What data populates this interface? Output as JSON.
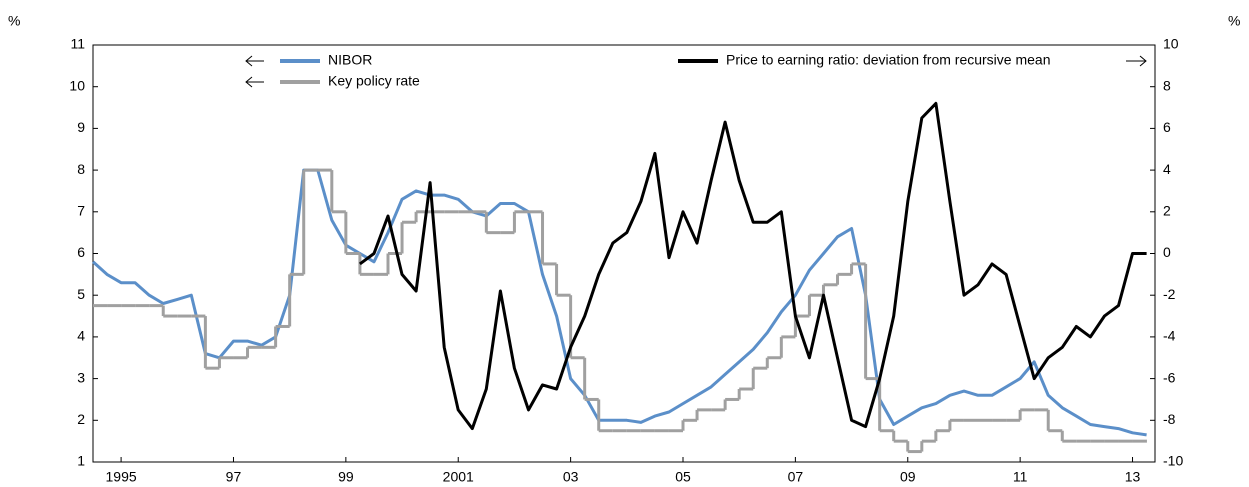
{
  "chart_data": {
    "type": "line",
    "y_unit": "%",
    "y2_unit": "%",
    "x": [
      1995.0,
      1995.25,
      1995.5,
      1995.75,
      1996.0,
      1996.25,
      1996.5,
      1996.75,
      1997.0,
      1997.25,
      1997.5,
      1997.75,
      1998.0,
      1998.25,
      1998.5,
      1998.75,
      1999.0,
      1999.25,
      1999.5,
      1999.75,
      2000.0,
      2000.25,
      2000.5,
      2000.75,
      2001.0,
      2001.25,
      2001.5,
      2001.75,
      2002.0,
      2002.25,
      2002.5,
      2002.75,
      2003.0,
      2003.25,
      2003.5,
      2003.75,
      2004.0,
      2004.25,
      2004.5,
      2004.75,
      2005.0,
      2005.25,
      2005.5,
      2005.75,
      2006.0,
      2006.25,
      2006.5,
      2006.75,
      2007.0,
      2007.25,
      2007.5,
      2007.75,
      2008.0,
      2008.25,
      2008.5,
      2008.75,
      2009.0,
      2009.25,
      2009.5,
      2009.75,
      2010.0,
      2010.25,
      2010.5,
      2010.75,
      2011.0,
      2011.25,
      2011.5,
      2011.75,
      2012.0,
      2012.25,
      2012.5,
      2012.75,
      2013.0,
      2013.25,
      2013.5,
      2013.75
    ],
    "series": [
      {
        "name": "NIBOR",
        "color": "#5b8fc9",
        "axis": "y",
        "values": [
          5.8,
          5.5,
          5.3,
          5.3,
          5.0,
          4.8,
          4.9,
          5.0,
          3.6,
          3.5,
          3.9,
          3.9,
          3.8,
          4.0,
          5.0,
          8.0,
          8.0,
          6.8,
          6.2,
          6.0,
          5.8,
          6.5,
          7.3,
          7.5,
          7.4,
          7.4,
          7.3,
          7.0,
          6.9,
          7.2,
          7.2,
          7.0,
          5.5,
          4.5,
          3.0,
          2.6,
          2.0,
          2.0,
          2.0,
          1.95,
          2.1,
          2.2,
          2.4,
          2.6,
          2.8,
          3.1,
          3.4,
          3.7,
          4.1,
          4.6,
          5.0,
          5.6,
          6.0,
          6.4,
          6.6,
          5.0,
          2.5,
          1.9,
          2.1,
          2.3,
          2.4,
          2.6,
          2.7,
          2.6,
          2.6,
          2.8,
          3.0,
          3.4,
          2.6,
          2.3,
          2.1,
          1.9,
          1.85,
          1.8,
          1.7,
          1.65
        ]
      },
      {
        "name": "Key policy rate",
        "color": "#a0a0a0",
        "axis": "y",
        "step": true,
        "values": [
          4.75,
          4.75,
          4.75,
          4.75,
          4.75,
          4.5,
          4.5,
          4.5,
          3.25,
          3.5,
          3.5,
          3.75,
          3.75,
          4.25,
          5.5,
          8.0,
          8.0,
          7.0,
          6.0,
          5.5,
          5.5,
          6.0,
          6.75,
          7.0,
          7.0,
          7.0,
          7.0,
          7.0,
          6.5,
          6.5,
          7.0,
          7.0,
          5.75,
          5.0,
          3.5,
          2.5,
          1.75,
          1.75,
          1.75,
          1.75,
          1.75,
          1.75,
          2.0,
          2.25,
          2.25,
          2.5,
          2.75,
          3.25,
          3.5,
          4.0,
          4.5,
          5.0,
          5.25,
          5.5,
          5.75,
          3.0,
          1.75,
          1.5,
          1.25,
          1.5,
          1.75,
          2.0,
          2.0,
          2.0,
          2.0,
          2.0,
          2.25,
          2.25,
          1.75,
          1.5,
          1.5,
          1.5,
          1.5,
          1.5,
          1.5,
          1.5
        ]
      },
      {
        "name": "Price to earning ratio: deviation from recursive mean",
        "color": "#000000",
        "axis": "y2",
        "values": [
          null,
          null,
          null,
          null,
          null,
          null,
          null,
          null,
          null,
          null,
          null,
          null,
          null,
          null,
          null,
          null,
          null,
          null,
          null,
          -0.5,
          0.0,
          1.8,
          -1.0,
          -1.8,
          3.4,
          -4.5,
          -7.5,
          -8.4,
          -6.5,
          -1.8,
          -5.5,
          -7.5,
          -6.3,
          -6.5,
          -4.5,
          -3.0,
          -1.0,
          0.5,
          1.0,
          2.5,
          4.8,
          -0.2,
          2.0,
          0.5,
          3.5,
          6.3,
          3.5,
          1.5,
          1.5,
          2.0,
          -3.0,
          -5.0,
          -2.0,
          -5.0,
          -8.0,
          -8.3,
          -6.0,
          -3.0,
          2.5,
          6.5,
          7.2,
          2.5,
          -2.0,
          -1.5,
          -0.5,
          -1.0,
          -3.5,
          -6.0,
          -5.0,
          -4.5,
          -3.5,
          -4.0,
          -3.0,
          -2.5,
          0.0,
          0.0
        ]
      }
    ],
    "xlim": [
      1995.0,
      2013.9
    ],
    "xticks": [
      {
        "value": 1995.5,
        "label": "1995"
      },
      {
        "value": 1997.5,
        "label": "97"
      },
      {
        "value": 1999.5,
        "label": "99"
      },
      {
        "value": 2001.5,
        "label": "2001"
      },
      {
        "value": 2003.5,
        "label": "03"
      },
      {
        "value": 2005.5,
        "label": "05"
      },
      {
        "value": 2007.5,
        "label": "07"
      },
      {
        "value": 2009.5,
        "label": "09"
      },
      {
        "value": 2011.5,
        "label": "11"
      },
      {
        "value": 2013.5,
        "label": "13"
      }
    ],
    "ylim": [
      1,
      11
    ],
    "yticks": [
      1,
      2,
      3,
      4,
      5,
      6,
      7,
      8,
      9,
      10,
      11
    ],
    "y2lim": [
      -10,
      10
    ],
    "y2ticks": [
      -10,
      -8,
      -6,
      -4,
      -2,
      0,
      2,
      4,
      6,
      8,
      10
    ]
  }
}
